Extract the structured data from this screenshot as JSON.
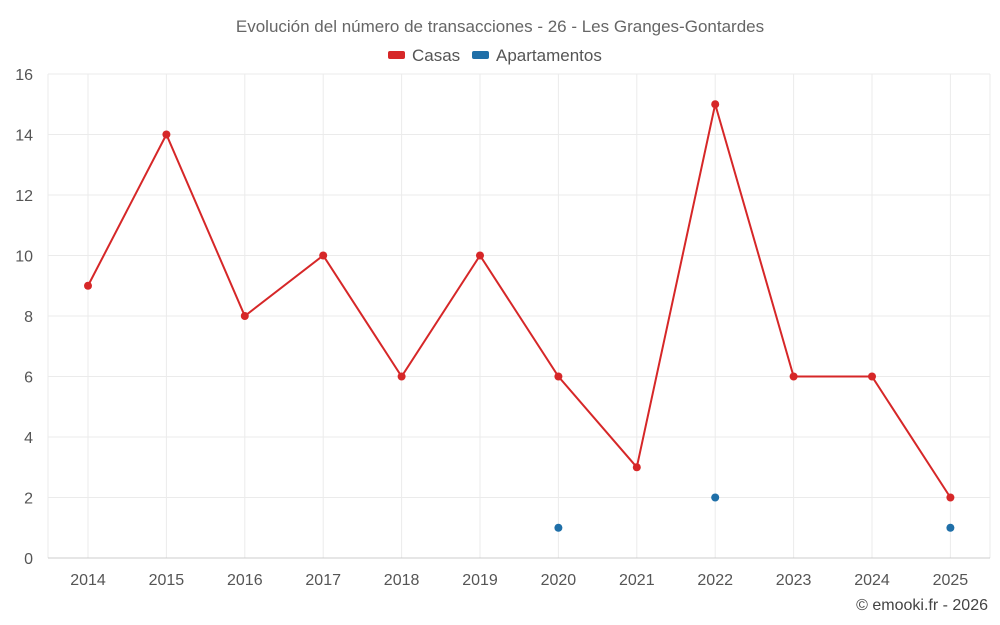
{
  "chart_data": {
    "type": "line",
    "title": "Evolución del número de transacciones - 26 - Les Granges-Gontardes",
    "categories": [
      "2014",
      "2015",
      "2016",
      "2017",
      "2018",
      "2019",
      "2020",
      "2021",
      "2022",
      "2023",
      "2024",
      "2025"
    ],
    "series": [
      {
        "name": "Casas",
        "color": "#d62728",
        "values": [
          9,
          14,
          8,
          10,
          6,
          10,
          6,
          3,
          15,
          6,
          6,
          2
        ]
      },
      {
        "name": "Apartamentos",
        "color": "#1f6fa8",
        "values": [
          null,
          null,
          null,
          null,
          null,
          null,
          1,
          null,
          2,
          null,
          null,
          1
        ]
      }
    ],
    "ylim": [
      0,
      16
    ],
    "yticks": [
      0,
      2,
      4,
      6,
      8,
      10,
      12,
      14,
      16
    ],
    "xlabel": "",
    "ylabel": "",
    "grid": true,
    "legend_position": "top-center"
  },
  "credit": "© emooki.fr - 2026"
}
